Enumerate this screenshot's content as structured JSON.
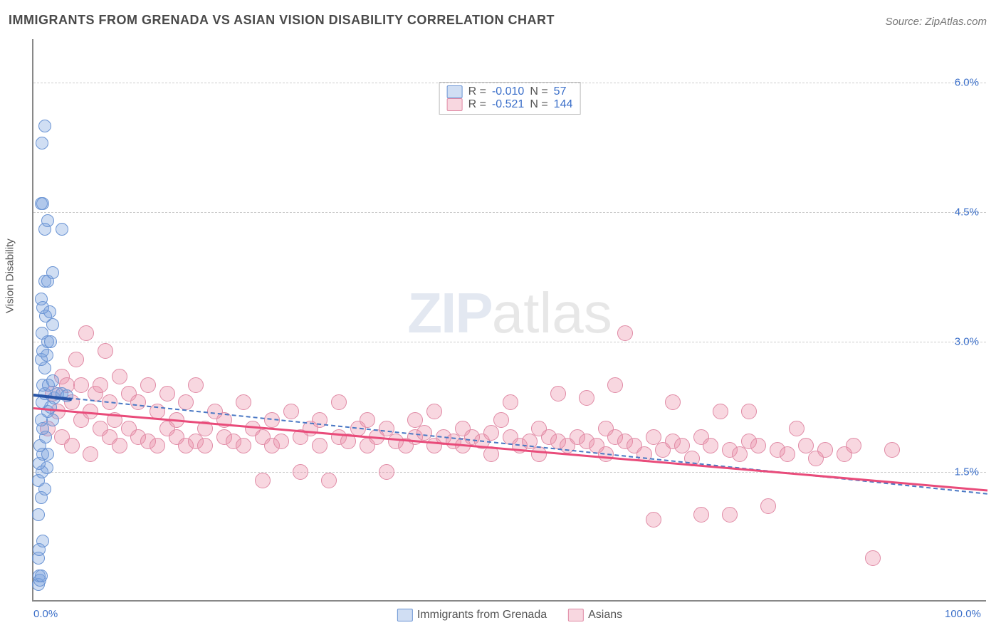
{
  "title": "IMMIGRANTS FROM GRENADA VS ASIAN VISION DISABILITY CORRELATION CHART",
  "source": "Source: ZipAtlas.com",
  "ylabel": "Vision Disability",
  "watermark": {
    "part1": "ZIP",
    "part2": "atlas"
  },
  "chart": {
    "type": "scatter-with-regression",
    "xlim": [
      0,
      100
    ],
    "ylim": [
      0,
      6.5
    ],
    "yticks": [
      {
        "v": 1.5,
        "label": "1.5%"
      },
      {
        "v": 3.0,
        "label": "3.0%"
      },
      {
        "v": 4.5,
        "label": "4.5%"
      },
      {
        "v": 6.0,
        "label": "6.0%"
      }
    ],
    "xticks": [
      {
        "v": 0,
        "label": "0.0%"
      },
      {
        "v": 100,
        "label": "100.0%"
      }
    ],
    "grid_color": "#cccccc",
    "axis_color": "#888888",
    "background_color": "#ffffff",
    "tick_color": "#3b6fc9",
    "series": [
      {
        "id": "grenada",
        "label": "Immigrants from Grenada",
        "color_fill": "rgba(120,160,220,0.35)",
        "color_stroke": "#6a94d4",
        "marker_radius": 9,
        "trend": {
          "x1": 0,
          "y1": 2.4,
          "x2": 100,
          "y2": 1.25,
          "color": "#4a78c4",
          "dash": "6,5",
          "width": 2
        },
        "trend_solid": {
          "x1": 0,
          "y1": 2.4,
          "x2": 4,
          "y2": 2.35,
          "color": "#2a56a8",
          "width": 4
        },
        "R": "-0.010",
        "N": "57",
        "points": [
          [
            0.5,
            0.2
          ],
          [
            0.7,
            0.25
          ],
          [
            0.6,
            0.3
          ],
          [
            0.8,
            0.3
          ],
          [
            0.5,
            0.5
          ],
          [
            0.6,
            0.6
          ],
          [
            1.0,
            0.7
          ],
          [
            0.5,
            1.0
          ],
          [
            0.8,
            1.2
          ],
          [
            1.2,
            1.3
          ],
          [
            0.5,
            1.4
          ],
          [
            0.9,
            1.5
          ],
          [
            1.4,
            1.55
          ],
          [
            0.6,
            1.6
          ],
          [
            1.0,
            1.7
          ],
          [
            1.5,
            1.7
          ],
          [
            0.7,
            1.8
          ],
          [
            1.3,
            1.9
          ],
          [
            1.0,
            2.0
          ],
          [
            2.0,
            2.1
          ],
          [
            0.8,
            2.1
          ],
          [
            1.5,
            2.2
          ],
          [
            1.8,
            2.25
          ],
          [
            0.9,
            2.3
          ],
          [
            2.2,
            2.35
          ],
          [
            1.2,
            2.4
          ],
          [
            2.5,
            2.4
          ],
          [
            3.0,
            2.4
          ],
          [
            3.5,
            2.38
          ],
          [
            1.0,
            2.5
          ],
          [
            1.6,
            2.5
          ],
          [
            2.0,
            2.55
          ],
          [
            1.2,
            2.7
          ],
          [
            0.8,
            2.8
          ],
          [
            1.4,
            2.85
          ],
          [
            1.0,
            2.9
          ],
          [
            1.5,
            3.0
          ],
          [
            1.8,
            3.0
          ],
          [
            0.9,
            3.1
          ],
          [
            2.0,
            3.2
          ],
          [
            1.3,
            3.3
          ],
          [
            1.7,
            3.35
          ],
          [
            1.0,
            3.4
          ],
          [
            0.8,
            3.5
          ],
          [
            1.2,
            3.7
          ],
          [
            1.5,
            3.7
          ],
          [
            2.0,
            3.8
          ],
          [
            3.0,
            4.3
          ],
          [
            1.2,
            4.3
          ],
          [
            1.5,
            4.4
          ],
          [
            0.8,
            4.6
          ],
          [
            1.0,
            4.6
          ],
          [
            0.9,
            5.3
          ],
          [
            1.2,
            5.5
          ]
        ]
      },
      {
        "id": "asians",
        "label": "Asians",
        "color_fill": "rgba(235,140,165,0.35)",
        "color_stroke": "#e08aa5",
        "marker_radius": 11,
        "trend": {
          "x1": 0,
          "y1": 2.25,
          "x2": 100,
          "y2": 1.3,
          "color": "#e94b7a",
          "dash": null,
          "width": 3.5
        },
        "R": "-0.521",
        "N": "144",
        "points": [
          [
            1.5,
            2.0
          ],
          [
            2,
            2.4
          ],
          [
            2.5,
            2.2
          ],
          [
            3,
            1.9
          ],
          [
            3,
            2.6
          ],
          [
            3.5,
            2.5
          ],
          [
            4,
            1.8
          ],
          [
            4,
            2.3
          ],
          [
            4.5,
            2.8
          ],
          [
            5,
            2.1
          ],
          [
            5,
            2.5
          ],
          [
            5.5,
            3.1
          ],
          [
            6,
            1.7
          ],
          [
            6,
            2.2
          ],
          [
            6.5,
            2.4
          ],
          [
            7,
            2.0
          ],
          [
            7,
            2.5
          ],
          [
            7.5,
            2.9
          ],
          [
            8,
            1.9
          ],
          [
            8,
            2.3
          ],
          [
            8.5,
            2.1
          ],
          [
            9,
            1.8
          ],
          [
            9,
            2.6
          ],
          [
            10,
            2.0
          ],
          [
            10,
            2.4
          ],
          [
            11,
            1.9
          ],
          [
            11,
            2.3
          ],
          [
            12,
            2.5
          ],
          [
            12,
            1.85
          ],
          [
            13,
            1.8
          ],
          [
            13,
            2.2
          ],
          [
            14,
            2.0
          ],
          [
            14,
            2.4
          ],
          [
            15,
            1.9
          ],
          [
            15,
            2.1
          ],
          [
            16,
            1.8
          ],
          [
            16,
            2.3
          ],
          [
            17,
            1.85
          ],
          [
            17,
            2.5
          ],
          [
            18,
            2.0
          ],
          [
            18,
            1.8
          ],
          [
            19,
            2.2
          ],
          [
            20,
            1.9
          ],
          [
            20,
            2.1
          ],
          [
            21,
            1.85
          ],
          [
            22,
            1.8
          ],
          [
            22,
            2.3
          ],
          [
            23,
            2.0
          ],
          [
            24,
            1.4
          ],
          [
            24,
            1.9
          ],
          [
            25,
            2.1
          ],
          [
            25,
            1.8
          ],
          [
            26,
            1.85
          ],
          [
            27,
            2.2
          ],
          [
            28,
            1.9
          ],
          [
            28,
            1.5
          ],
          [
            29,
            2.0
          ],
          [
            30,
            1.8
          ],
          [
            30,
            2.1
          ],
          [
            31,
            1.4
          ],
          [
            32,
            1.9
          ],
          [
            32,
            2.3
          ],
          [
            33,
            1.85
          ],
          [
            34,
            2.0
          ],
          [
            35,
            1.8
          ],
          [
            35,
            2.1
          ],
          [
            36,
            1.9
          ],
          [
            37,
            1.5
          ],
          [
            37,
            2.0
          ],
          [
            38,
            1.85
          ],
          [
            39,
            1.8
          ],
          [
            40,
            2.1
          ],
          [
            40,
            1.9
          ],
          [
            41,
            1.95
          ],
          [
            42,
            2.2
          ],
          [
            42,
            1.8
          ],
          [
            43,
            1.9
          ],
          [
            44,
            1.85
          ],
          [
            45,
            2.0
          ],
          [
            45,
            1.8
          ],
          [
            46,
            1.9
          ],
          [
            47,
            1.85
          ],
          [
            48,
            1.95
          ],
          [
            48,
            1.7
          ],
          [
            49,
            2.1
          ],
          [
            50,
            1.9
          ],
          [
            50,
            2.3
          ],
          [
            51,
            1.8
          ],
          [
            52,
            1.85
          ],
          [
            53,
            2.0
          ],
          [
            53,
            1.7
          ],
          [
            54,
            1.9
          ],
          [
            55,
            1.85
          ],
          [
            55,
            2.4
          ],
          [
            56,
            1.8
          ],
          [
            57,
            1.9
          ],
          [
            58,
            2.35
          ],
          [
            58,
            1.85
          ],
          [
            59,
            1.8
          ],
          [
            60,
            1.7
          ],
          [
            60,
            2.0
          ],
          [
            61,
            1.9
          ],
          [
            61,
            2.5
          ],
          [
            62,
            1.85
          ],
          [
            62,
            3.1
          ],
          [
            63,
            1.8
          ],
          [
            64,
            1.7
          ],
          [
            65,
            1.9
          ],
          [
            65,
            0.95
          ],
          [
            66,
            1.75
          ],
          [
            67,
            2.3
          ],
          [
            67,
            1.85
          ],
          [
            68,
            1.8
          ],
          [
            69,
            1.65
          ],
          [
            70,
            1.9
          ],
          [
            70,
            1.0
          ],
          [
            71,
            1.8
          ],
          [
            72,
            2.2
          ],
          [
            73,
            1.75
          ],
          [
            73,
            1.0
          ],
          [
            74,
            1.7
          ],
          [
            75,
            1.85
          ],
          [
            75,
            2.2
          ],
          [
            76,
            1.8
          ],
          [
            77,
            1.1
          ],
          [
            78,
            1.75
          ],
          [
            79,
            1.7
          ],
          [
            80,
            2.0
          ],
          [
            81,
            1.8
          ],
          [
            82,
            1.65
          ],
          [
            83,
            1.75
          ],
          [
            85,
            1.7
          ],
          [
            86,
            1.8
          ],
          [
            88,
            0.5
          ],
          [
            90,
            1.75
          ]
        ]
      }
    ]
  },
  "legend_top": [
    {
      "sw_fill": "rgba(120,160,220,0.35)",
      "sw_stroke": "#6a94d4",
      "R_label": "R =",
      "R": "-0.010",
      "N_label": "N =",
      "N": "57"
    },
    {
      "sw_fill": "rgba(235,140,165,0.35)",
      "sw_stroke": "#e08aa5",
      "R_label": "R =",
      "R": "-0.521",
      "N_label": "N =",
      "N": "144"
    }
  ]
}
